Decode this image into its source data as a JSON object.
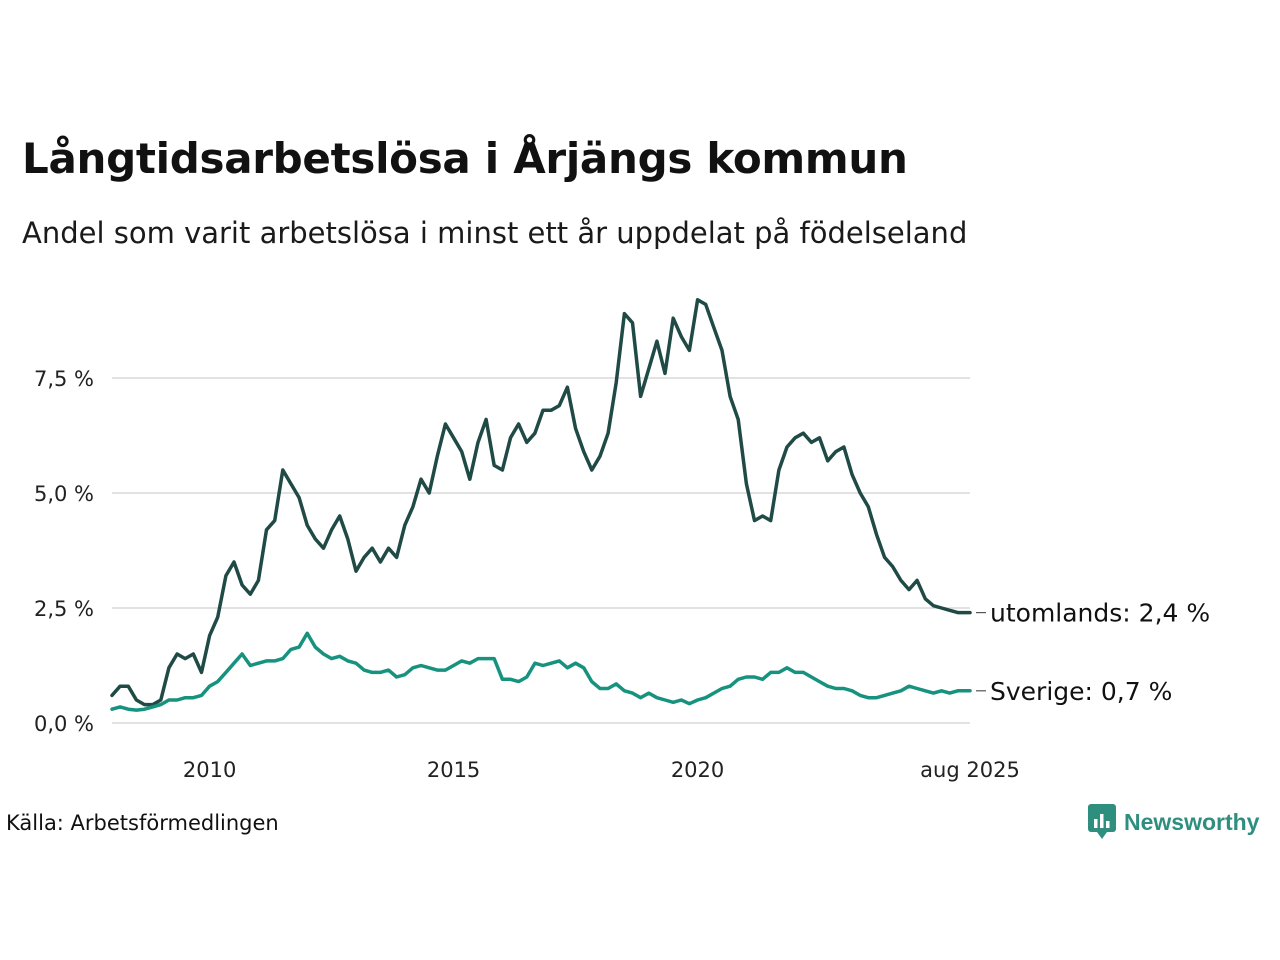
{
  "title": "Långtidsarbetslösa i Årjängs kommun",
  "subtitle": "Andel som varit arbetslösa i minst ett år uppdelat på födelseland",
  "source": "Källa: Arbetsförmedlingen",
  "brand": "Newsworthy",
  "colors": {
    "utomlands": "#1f4a45",
    "sverige": "#16927f",
    "grid": "#e2e2e2",
    "brand": "#2f8f7e"
  },
  "chart_data": {
    "type": "line",
    "title": "Långtidsarbetslösa i Årjängs kommun",
    "subtitle": "Andel som varit arbetslösa i minst ett år uppdelat på födelseland",
    "xlabel": "",
    "ylabel": "",
    "xlim": [
      "2008-01",
      "2025-08"
    ],
    "ylim": [
      0,
      9.3
    ],
    "grid": true,
    "y_ticks": [
      0,
      2.5,
      5,
      7.5
    ],
    "y_tick_labels": [
      "0,0 %",
      "2,5 %",
      "5,0 %",
      "7,5 %"
    ],
    "x_ticks": [
      "2010-01",
      "2015-01",
      "2020-01",
      "2025-08"
    ],
    "x_tick_labels": [
      "2010",
      "2015",
      "2020",
      "aug 2025"
    ],
    "series": [
      {
        "name": "utomlands",
        "end_label": "utomlands: 2,4 %",
        "color": "#1f4a45",
        "points": [
          [
            "2008-01",
            0.6
          ],
          [
            "2008-03",
            0.8
          ],
          [
            "2008-05",
            0.8
          ],
          [
            "2008-07",
            0.5
          ],
          [
            "2008-09",
            0.4
          ],
          [
            "2008-11",
            0.4
          ],
          [
            "2009-01",
            0.5
          ],
          [
            "2009-03",
            1.2
          ],
          [
            "2009-05",
            1.5
          ],
          [
            "2009-07",
            1.4
          ],
          [
            "2009-09",
            1.5
          ],
          [
            "2009-11",
            1.1
          ],
          [
            "2010-01",
            1.9
          ],
          [
            "2010-03",
            2.3
          ],
          [
            "2010-05",
            3.2
          ],
          [
            "2010-07",
            3.5
          ],
          [
            "2010-09",
            3.0
          ],
          [
            "2010-11",
            2.8
          ],
          [
            "2011-01",
            3.1
          ],
          [
            "2011-03",
            4.2
          ],
          [
            "2011-05",
            4.4
          ],
          [
            "2011-07",
            5.5
          ],
          [
            "2011-09",
            5.2
          ],
          [
            "2011-11",
            4.9
          ],
          [
            "2012-01",
            4.3
          ],
          [
            "2012-03",
            4.0
          ],
          [
            "2012-05",
            3.8
          ],
          [
            "2012-07",
            4.2
          ],
          [
            "2012-09",
            4.5
          ],
          [
            "2012-11",
            4.0
          ],
          [
            "2013-01",
            3.3
          ],
          [
            "2013-03",
            3.6
          ],
          [
            "2013-05",
            3.8
          ],
          [
            "2013-07",
            3.5
          ],
          [
            "2013-09",
            3.8
          ],
          [
            "2013-11",
            3.6
          ],
          [
            "2014-01",
            4.3
          ],
          [
            "2014-03",
            4.7
          ],
          [
            "2014-05",
            5.3
          ],
          [
            "2014-07",
            5.0
          ],
          [
            "2014-09",
            5.8
          ],
          [
            "2014-11",
            6.5
          ],
          [
            "2015-01",
            6.2
          ],
          [
            "2015-03",
            5.9
          ],
          [
            "2015-05",
            5.3
          ],
          [
            "2015-07",
            6.1
          ],
          [
            "2015-09",
            6.6
          ],
          [
            "2015-11",
            5.6
          ],
          [
            "2016-01",
            5.5
          ],
          [
            "2016-03",
            6.2
          ],
          [
            "2016-05",
            6.5
          ],
          [
            "2016-07",
            6.1
          ],
          [
            "2016-09",
            6.3
          ],
          [
            "2016-11",
            6.8
          ],
          [
            "2017-01",
            6.8
          ],
          [
            "2017-03",
            6.9
          ],
          [
            "2017-05",
            7.3
          ],
          [
            "2017-07",
            6.4
          ],
          [
            "2017-09",
            5.9
          ],
          [
            "2017-11",
            5.5
          ],
          [
            "2018-01",
            5.8
          ],
          [
            "2018-03",
            6.3
          ],
          [
            "2018-05",
            7.4
          ],
          [
            "2018-07",
            8.9
          ],
          [
            "2018-09",
            8.7
          ],
          [
            "2018-11",
            7.1
          ],
          [
            "2019-01",
            7.7
          ],
          [
            "2019-03",
            8.3
          ],
          [
            "2019-05",
            7.6
          ],
          [
            "2019-07",
            8.8
          ],
          [
            "2019-09",
            8.4
          ],
          [
            "2019-11",
            8.1
          ],
          [
            "2020-01",
            9.2
          ],
          [
            "2020-03",
            9.1
          ],
          [
            "2020-05",
            8.6
          ],
          [
            "2020-07",
            8.1
          ],
          [
            "2020-09",
            7.1
          ],
          [
            "2020-11",
            6.6
          ],
          [
            "2021-01",
            5.2
          ],
          [
            "2021-03",
            4.4
          ],
          [
            "2021-05",
            4.5
          ],
          [
            "2021-07",
            4.4
          ],
          [
            "2021-09",
            5.5
          ],
          [
            "2021-11",
            6.0
          ],
          [
            "2022-01",
            6.2
          ],
          [
            "2022-03",
            6.3
          ],
          [
            "2022-05",
            6.1
          ],
          [
            "2022-07",
            6.2
          ],
          [
            "2022-09",
            5.7
          ],
          [
            "2022-11",
            5.9
          ],
          [
            "2023-01",
            6.0
          ],
          [
            "2023-03",
            5.4
          ],
          [
            "2023-05",
            5.0
          ],
          [
            "2023-07",
            4.7
          ],
          [
            "2023-09",
            4.1
          ],
          [
            "2023-11",
            3.6
          ],
          [
            "2024-01",
            3.4
          ],
          [
            "2024-03",
            3.1
          ],
          [
            "2024-05",
            2.9
          ],
          [
            "2024-07",
            3.1
          ],
          [
            "2024-09",
            2.7
          ],
          [
            "2024-11",
            2.55
          ],
          [
            "2025-01",
            2.5
          ],
          [
            "2025-03",
            2.45
          ],
          [
            "2025-05",
            2.4
          ],
          [
            "2025-08",
            2.4
          ]
        ]
      },
      {
        "name": "Sverige",
        "end_label": "Sverige: 0,7 %",
        "color": "#16927f",
        "points": [
          [
            "2008-01",
            0.3
          ],
          [
            "2008-03",
            0.35
          ],
          [
            "2008-05",
            0.3
          ],
          [
            "2008-07",
            0.28
          ],
          [
            "2008-09",
            0.3
          ],
          [
            "2008-11",
            0.35
          ],
          [
            "2009-01",
            0.4
          ],
          [
            "2009-03",
            0.5
          ],
          [
            "2009-05",
            0.5
          ],
          [
            "2009-07",
            0.55
          ],
          [
            "2009-09",
            0.55
          ],
          [
            "2009-11",
            0.6
          ],
          [
            "2010-01",
            0.8
          ],
          [
            "2010-03",
            0.9
          ],
          [
            "2010-05",
            1.1
          ],
          [
            "2010-07",
            1.3
          ],
          [
            "2010-09",
            1.5
          ],
          [
            "2010-11",
            1.25
          ],
          [
            "2011-01",
            1.3
          ],
          [
            "2011-03",
            1.35
          ],
          [
            "2011-05",
            1.35
          ],
          [
            "2011-07",
            1.4
          ],
          [
            "2011-09",
            1.6
          ],
          [
            "2011-11",
            1.65
          ],
          [
            "2012-01",
            1.95
          ],
          [
            "2012-03",
            1.65
          ],
          [
            "2012-05",
            1.5
          ],
          [
            "2012-07",
            1.4
          ],
          [
            "2012-09",
            1.45
          ],
          [
            "2012-11",
            1.35
          ],
          [
            "2013-01",
            1.3
          ],
          [
            "2013-03",
            1.15
          ],
          [
            "2013-05",
            1.1
          ],
          [
            "2013-07",
            1.1
          ],
          [
            "2013-09",
            1.15
          ],
          [
            "2013-11",
            1.0
          ],
          [
            "2014-01",
            1.05
          ],
          [
            "2014-03",
            1.2
          ],
          [
            "2014-05",
            1.25
          ],
          [
            "2014-07",
            1.2
          ],
          [
            "2014-09",
            1.15
          ],
          [
            "2014-11",
            1.15
          ],
          [
            "2015-01",
            1.25
          ],
          [
            "2015-03",
            1.35
          ],
          [
            "2015-05",
            1.3
          ],
          [
            "2015-07",
            1.4
          ],
          [
            "2015-09",
            1.4
          ],
          [
            "2015-11",
            1.4
          ],
          [
            "2016-01",
            0.95
          ],
          [
            "2016-03",
            0.95
          ],
          [
            "2016-05",
            0.9
          ],
          [
            "2016-07",
            1.0
          ],
          [
            "2016-09",
            1.3
          ],
          [
            "2016-11",
            1.25
          ],
          [
            "2017-01",
            1.3
          ],
          [
            "2017-03",
            1.35
          ],
          [
            "2017-05",
            1.2
          ],
          [
            "2017-07",
            1.3
          ],
          [
            "2017-09",
            1.2
          ],
          [
            "2017-11",
            0.9
          ],
          [
            "2018-01",
            0.75
          ],
          [
            "2018-03",
            0.75
          ],
          [
            "2018-05",
            0.85
          ],
          [
            "2018-07",
            0.7
          ],
          [
            "2018-09",
            0.65
          ],
          [
            "2018-11",
            0.55
          ],
          [
            "2019-01",
            0.65
          ],
          [
            "2019-03",
            0.55
          ],
          [
            "2019-05",
            0.5
          ],
          [
            "2019-07",
            0.45
          ],
          [
            "2019-09",
            0.5
          ],
          [
            "2019-11",
            0.42
          ],
          [
            "2020-01",
            0.5
          ],
          [
            "2020-03",
            0.55
          ],
          [
            "2020-05",
            0.65
          ],
          [
            "2020-07",
            0.75
          ],
          [
            "2020-09",
            0.8
          ],
          [
            "2020-11",
            0.95
          ],
          [
            "2021-01",
            1.0
          ],
          [
            "2021-03",
            1.0
          ],
          [
            "2021-05",
            0.95
          ],
          [
            "2021-07",
            1.1
          ],
          [
            "2021-09",
            1.1
          ],
          [
            "2021-11",
            1.2
          ],
          [
            "2022-01",
            1.1
          ],
          [
            "2022-03",
            1.1
          ],
          [
            "2022-05",
            1.0
          ],
          [
            "2022-07",
            0.9
          ],
          [
            "2022-09",
            0.8
          ],
          [
            "2022-11",
            0.75
          ],
          [
            "2023-01",
            0.75
          ],
          [
            "2023-03",
            0.7
          ],
          [
            "2023-05",
            0.6
          ],
          [
            "2023-07",
            0.55
          ],
          [
            "2023-09",
            0.55
          ],
          [
            "2023-11",
            0.6
          ],
          [
            "2024-01",
            0.65
          ],
          [
            "2024-03",
            0.7
          ],
          [
            "2024-05",
            0.8
          ],
          [
            "2024-07",
            0.75
          ],
          [
            "2024-09",
            0.7
          ],
          [
            "2024-11",
            0.65
          ],
          [
            "2025-01",
            0.7
          ],
          [
            "2025-03",
            0.65
          ],
          [
            "2025-05",
            0.7
          ],
          [
            "2025-08",
            0.7
          ]
        ]
      }
    ]
  }
}
